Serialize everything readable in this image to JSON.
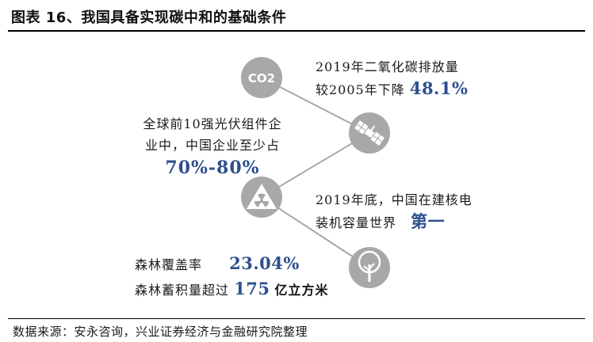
{
  "title": "图表 16、我国具备实现碳中和的基础条件",
  "source": "数据来源：安永咨询，兴业证券经济与金融研究院整理",
  "colors": {
    "node": "#a8a8a8",
    "line": "#a8a8a8",
    "highlight": "#2d4f8e"
  },
  "nodes": [
    {
      "icon": "co2-icon",
      "label": "CO2"
    },
    {
      "icon": "solar-panel-icon"
    },
    {
      "icon": "nuclear-icon"
    },
    {
      "icon": "tree-icon"
    }
  ],
  "items": {
    "carbon": {
      "line1": "2019年二氧化碳排放量",
      "line2_prefix": "较2005年下降",
      "value": "48.1%"
    },
    "solar": {
      "line1": "全球前10强光伏组件企",
      "line2": "业中，中国企业至少占",
      "value": "70%-80%"
    },
    "nuclear": {
      "line1": "2019年底，中国在建核电",
      "line2_prefix": "装机容量世界",
      "value": "第一"
    },
    "forest": {
      "line1_prefix": "森林覆盖率",
      "value1": "23.04%",
      "line2_prefix": "森林蓄积量超过",
      "value2": "175",
      "unit2": "亿立方米"
    }
  }
}
